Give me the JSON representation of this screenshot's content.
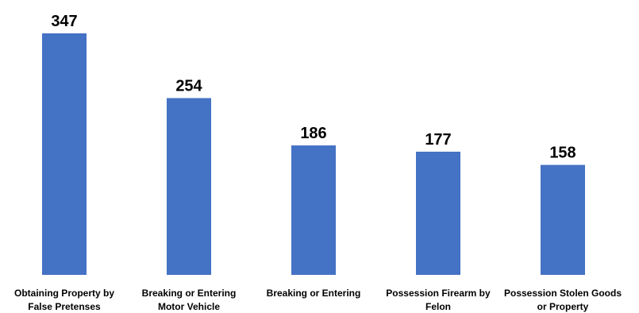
{
  "chart_data": {
    "type": "bar",
    "categories": [
      [
        "Obtaining Property by",
        "False Pretenses"
      ],
      [
        "Breaking or Entering",
        "Motor Vehicle"
      ],
      [
        "Breaking or Entering"
      ],
      [
        "Possession Firearm by",
        "Felon"
      ],
      [
        "Possession Stolen Goods",
        "or Property"
      ]
    ],
    "values": [
      347,
      254,
      186,
      177,
      158
    ],
    "data_labels": [
      "347",
      "254",
      "186",
      "177",
      "158"
    ],
    "ylim": [
      0,
      347
    ],
    "grid": false,
    "legend": "none",
    "bar_color": "#4472C4"
  }
}
